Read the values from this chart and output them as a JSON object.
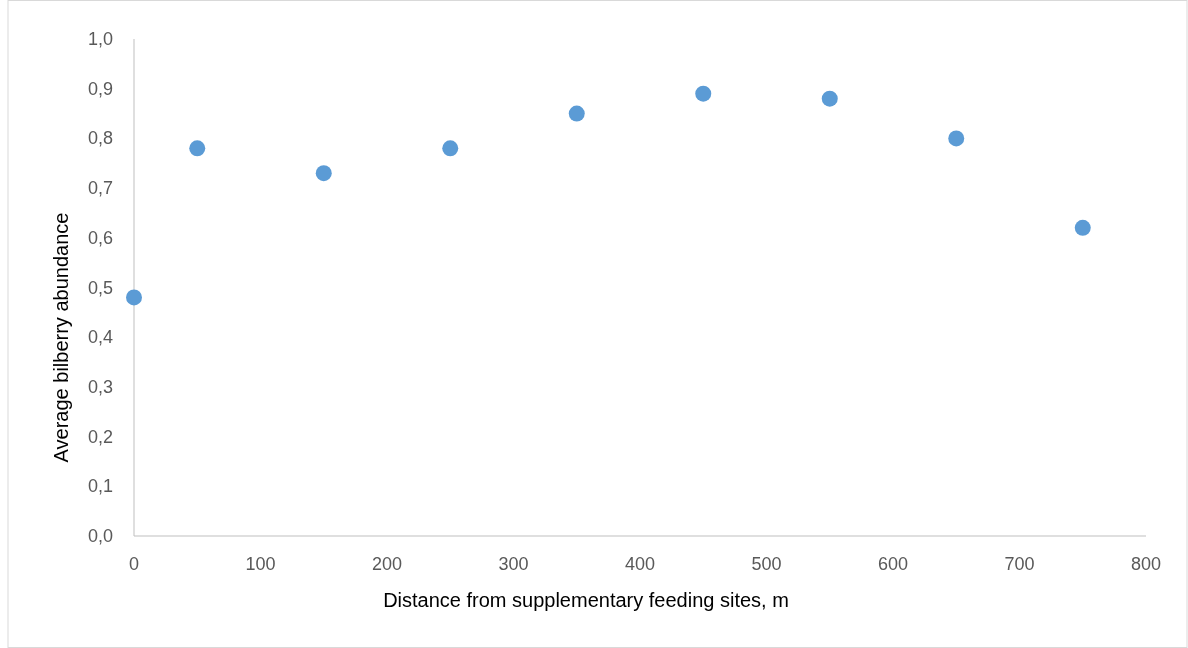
{
  "chart_data": {
    "type": "scatter",
    "xlabel": "Distance from supplementary feeding sites, m",
    "ylabel": "Average bilberry abundance",
    "x": [
      0,
      50,
      150,
      250,
      350,
      450,
      550,
      650,
      750
    ],
    "series": [
      {
        "color": "#5b9bd5",
        "values": [
          0.48,
          0.78,
          0.73,
          0.78,
          0.85,
          0.89,
          0.88,
          0.8,
          0.62
        ]
      }
    ],
    "xlim": [
      0,
      800
    ],
    "xticks": [
      0,
      100,
      200,
      300,
      400,
      500,
      600,
      700,
      800
    ],
    "ylim": [
      0,
      1
    ],
    "yticks": [
      {
        "value": 0,
        "label": "0,0"
      },
      {
        "value": 0.1,
        "label": "0,1"
      },
      {
        "value": 0.2,
        "label": "0,2"
      },
      {
        "value": 0.3,
        "label": "0,3"
      },
      {
        "value": 0.4,
        "label": "0,4"
      },
      {
        "value": 0.5,
        "label": "0,5"
      },
      {
        "value": 0.6,
        "label": "0,6"
      },
      {
        "value": 0.7,
        "label": "0,7"
      },
      {
        "value": 0.8,
        "label": "0,8"
      },
      {
        "value": 0.9,
        "label": "0,9"
      },
      {
        "value": 1,
        "label": "1,0"
      }
    ],
    "marker": "circle",
    "grid": false
  }
}
